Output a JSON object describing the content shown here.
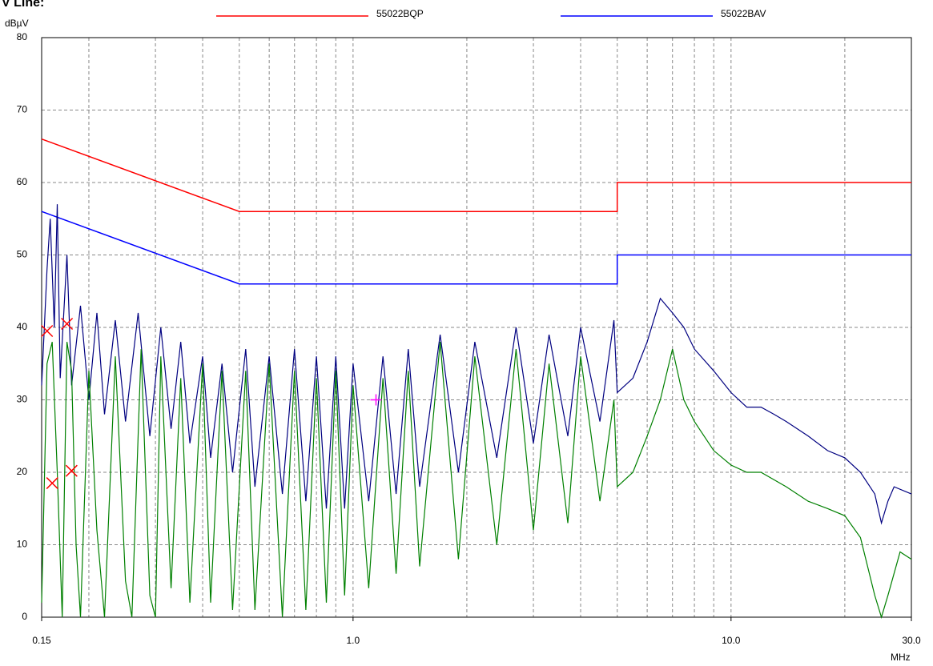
{
  "chart_data": {
    "type": "line",
    "heading": "V Line:",
    "ylabel": "dBµV",
    "xlabel": "MHz",
    "xscale": "log",
    "xlim": [
      0.15,
      30
    ],
    "ylim": [
      0,
      80
    ],
    "xticks": [
      0.15,
      {
        "value": 1,
        "label": "1.0"
      },
      {
        "value": 10,
        "label": "10.0"
      },
      {
        "value": 30,
        "label": "30.0"
      }
    ],
    "xgrid": [
      0.2,
      0.3,
      0.4,
      0.5,
      0.6,
      0.7,
      0.8,
      0.9,
      1,
      2,
      3,
      4,
      5,
      6,
      7,
      8,
      9,
      10,
      20
    ],
    "yticks": [
      0,
      10,
      20,
      30,
      40,
      50,
      60,
      70,
      80
    ],
    "grid": true,
    "series": [
      {
        "name": "55022BQP",
        "color": "#ff0000",
        "x": [
          0.15,
          0.5,
          5,
          5,
          30
        ],
        "values": [
          66,
          56,
          56,
          60,
          60
        ]
      },
      {
        "name": "55022BAV",
        "color": "#0000ff",
        "x": [
          0.15,
          0.5,
          5,
          5,
          30
        ],
        "values": [
          56,
          46,
          46,
          50,
          50
        ]
      },
      {
        "color": "#000080",
        "x": [
          0.15,
          0.155,
          0.158,
          0.162,
          0.165,
          0.168,
          0.175,
          0.18,
          0.19,
          0.2,
          0.21,
          0.22,
          0.235,
          0.25,
          0.27,
          0.29,
          0.31,
          0.33,
          0.35,
          0.37,
          0.4,
          0.42,
          0.45,
          0.48,
          0.52,
          0.55,
          0.6,
          0.65,
          0.7,
          0.75,
          0.8,
          0.85,
          0.9,
          0.95,
          1.0,
          1.1,
          1.2,
          1.3,
          1.4,
          1.5,
          1.7,
          1.9,
          2.1,
          2.4,
          2.7,
          3.0,
          3.3,
          3.7,
          4.0,
          4.5,
          4.9,
          5.0,
          5.5,
          6.0,
          6.5,
          7.0,
          7.5,
          8.0,
          9.0,
          10,
          11,
          12,
          13,
          14,
          16,
          18,
          20,
          22,
          24,
          25,
          26,
          27,
          30
        ],
        "values": [
          32,
          48,
          55,
          40,
          57,
          33,
          50,
          32,
          43,
          30,
          42,
          28,
          41,
          27,
          42,
          25,
          40,
          26,
          38,
          24,
          36,
          22,
          35,
          20,
          37,
          18,
          36,
          17,
          37,
          16,
          36,
          15,
          36,
          15,
          35,
          16,
          36,
          17,
          37,
          18,
          39,
          20,
          38,
          22,
          40,
          24,
          39,
          25,
          40,
          27,
          41,
          31,
          33,
          38,
          44,
          42,
          40,
          37,
          34,
          31,
          29,
          29,
          28,
          27,
          25,
          23,
          22,
          20,
          17,
          13,
          16,
          18,
          17
        ]
      },
      {
        "color": "#008000",
        "x": [
          0.15,
          0.155,
          0.16,
          0.165,
          0.17,
          0.175,
          0.18,
          0.185,
          0.19,
          0.2,
          0.21,
          0.22,
          0.235,
          0.25,
          0.26,
          0.275,
          0.29,
          0.3,
          0.31,
          0.33,
          0.35,
          0.37,
          0.4,
          0.42,
          0.45,
          0.48,
          0.52,
          0.55,
          0.6,
          0.65,
          0.7,
          0.75,
          0.8,
          0.85,
          0.9,
          0.95,
          1.0,
          1.1,
          1.2,
          1.3,
          1.4,
          1.5,
          1.7,
          1.9,
          2.1,
          2.4,
          2.7,
          3.0,
          3.3,
          3.7,
          4.0,
          4.5,
          4.9,
          5.0,
          5.5,
          6.0,
          6.5,
          7.0,
          7.5,
          8.0,
          9.0,
          10,
          11,
          12,
          14,
          16,
          18,
          20,
          22,
          24,
          25,
          26,
          28,
          30
        ],
        "values": [
          2,
          35,
          38,
          20,
          0,
          38,
          34,
          10,
          0,
          34,
          12,
          0,
          36,
          5,
          0,
          37,
          3,
          0,
          36,
          4,
          33,
          2,
          35,
          2,
          34,
          1,
          34,
          1,
          35,
          0,
          34,
          1,
          33,
          2,
          34,
          3,
          32,
          4,
          33,
          6,
          34,
          7,
          38,
          8,
          36,
          10,
          37,
          12,
          35,
          13,
          36,
          16,
          30,
          18,
          20,
          25,
          30,
          37,
          30,
          27,
          23,
          21,
          20,
          20,
          18,
          16,
          15,
          14,
          11,
          3,
          0,
          3,
          9,
          8
        ]
      }
    ],
    "markers": [
      {
        "x": 0.155,
        "y": 39.5,
        "symbol": "x",
        "color": "#ff0000"
      },
      {
        "x": 0.175,
        "y": 40.5,
        "symbol": "x",
        "color": "#ff0000"
      },
      {
        "x": 0.16,
        "y": 18.5,
        "symbol": "x",
        "color": "#ff0000"
      },
      {
        "x": 0.18,
        "y": 20.2,
        "symbol": "x",
        "color": "#ff0000"
      },
      {
        "x": 1.15,
        "y": 30,
        "symbol": "+",
        "color": "#ff00ff"
      }
    ]
  }
}
